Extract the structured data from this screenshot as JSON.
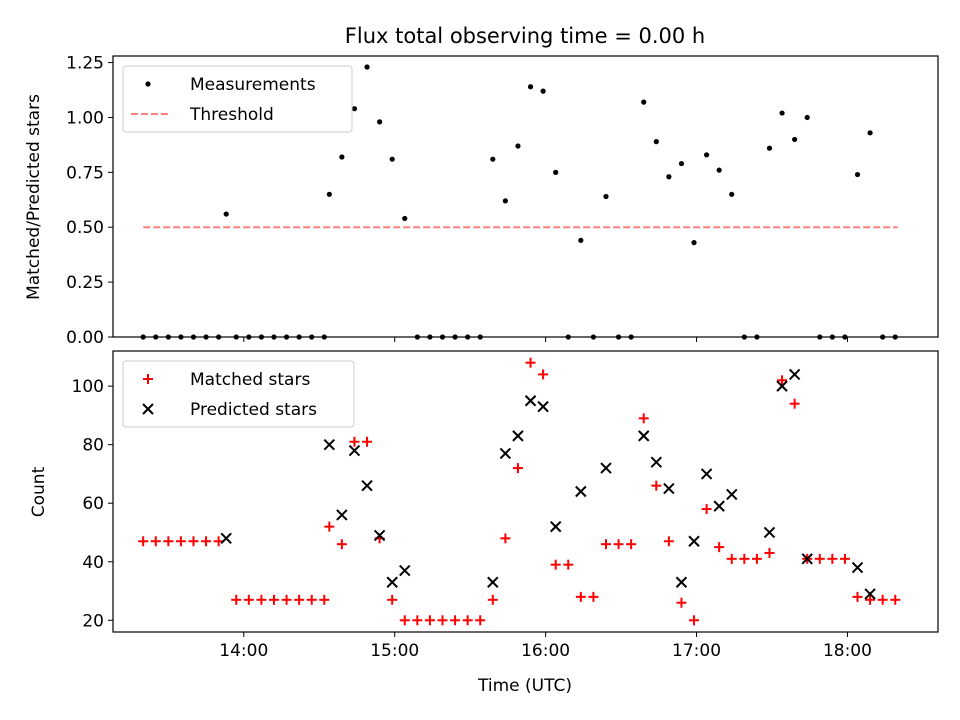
{
  "chart_data": [
    {
      "type": "scatter",
      "title": "Flux total observing time = 0.00 h",
      "xlabel": "",
      "ylabel": "Matched/Predicted stars",
      "ylim": [
        0,
        1.28
      ],
      "yticks": [
        0.0,
        0.25,
        0.5,
        0.75,
        1.0,
        1.25
      ],
      "ytick_labels": [
        "0.00",
        "0.25",
        "0.50",
        "0.75",
        "1.00",
        "1.25"
      ],
      "xlim": [
        "13:08",
        "18:36"
      ],
      "xticks": [
        "14:00",
        "15:00",
        "16:00",
        "17:00",
        "18:00"
      ],
      "legend": {
        "placement": "top-left",
        "entries": [
          "Measurements",
          "Threshold"
        ]
      },
      "series": [
        {
          "name": "Measurements",
          "marker": "dot",
          "color": "#000000",
          "points": [
            [
              "13:20",
              0
            ],
            [
              "13:25",
              0
            ],
            [
              "13:30",
              0
            ],
            [
              "13:35",
              0
            ],
            [
              "13:40",
              0
            ],
            [
              "13:45",
              0
            ],
            [
              "13:50",
              0
            ],
            [
              "13:53",
              0.56
            ],
            [
              "13:57",
              0
            ],
            [
              "14:02",
              0
            ],
            [
              "14:07",
              0
            ],
            [
              "14:12",
              0
            ],
            [
              "14:17",
              0
            ],
            [
              "14:22",
              0
            ],
            [
              "14:27",
              0
            ],
            [
              "14:32",
              0
            ],
            [
              "14:34",
              0.65
            ],
            [
              "14:39",
              0.82
            ],
            [
              "14:44",
              1.04
            ],
            [
              "14:49",
              1.23
            ],
            [
              "14:54",
              0.98
            ],
            [
              "14:59",
              0.81
            ],
            [
              "15:04",
              0.54
            ],
            [
              "15:09",
              0
            ],
            [
              "15:14",
              0
            ],
            [
              "15:19",
              0
            ],
            [
              "15:24",
              0
            ],
            [
              "15:29",
              0
            ],
            [
              "15:34",
              0
            ],
            [
              "15:39",
              0.81
            ],
            [
              "15:44",
              0.62
            ],
            [
              "15:49",
              0.87
            ],
            [
              "15:54",
              1.14
            ],
            [
              "15:59",
              1.12
            ],
            [
              "16:04",
              0.75
            ],
            [
              "16:09",
              0
            ],
            [
              "16:14",
              0.44
            ],
            [
              "16:19",
              0
            ],
            [
              "16:24",
              0.64
            ],
            [
              "16:29",
              0
            ],
            [
              "16:34",
              0
            ],
            [
              "16:39",
              1.07
            ],
            [
              "16:44",
              0.89
            ],
            [
              "16:49",
              0.73
            ],
            [
              "16:54",
              0.79
            ],
            [
              "16:59",
              0.43
            ],
            [
              "17:04",
              0.83
            ],
            [
              "17:09",
              0.76
            ],
            [
              "17:14",
              0.65
            ],
            [
              "17:19",
              0
            ],
            [
              "17:24",
              0
            ],
            [
              "17:29",
              0.86
            ],
            [
              "17:34",
              1.02
            ],
            [
              "17:39",
              0.9
            ],
            [
              "17:44",
              1.0
            ],
            [
              "17:49",
              0
            ],
            [
              "17:54",
              0
            ],
            [
              "17:59",
              0
            ],
            [
              "18:04",
              0.74
            ],
            [
              "18:09",
              0.93
            ],
            [
              "18:14",
              0
            ],
            [
              "18:19",
              0
            ]
          ]
        },
        {
          "name": "Threshold",
          "style": "dashed-line",
          "color": "#ff7f7f",
          "points": [
            [
              "13:20",
              0.5
            ],
            [
              "18:20",
              0.5
            ]
          ]
        }
      ]
    },
    {
      "type": "scatter",
      "title": "",
      "xlabel": "Time (UTC)",
      "ylabel": "Count",
      "ylim": [
        16,
        112
      ],
      "yticks": [
        20,
        40,
        60,
        80,
        100
      ],
      "ytick_labels": [
        "20",
        "40",
        "60",
        "80",
        "100"
      ],
      "xlim": [
        "13:08",
        "18:36"
      ],
      "xticks": [
        "14:00",
        "15:00",
        "16:00",
        "17:00",
        "18:00"
      ],
      "legend": {
        "placement": "top-left",
        "entries": [
          "Matched stars",
          "Predicted stars"
        ]
      },
      "series": [
        {
          "name": "Matched stars",
          "marker": "plus",
          "color": "#ff0000",
          "points": [
            [
              "13:20",
              47
            ],
            [
              "13:25",
              47
            ],
            [
              "13:30",
              47
            ],
            [
              "13:35",
              47
            ],
            [
              "13:40",
              47
            ],
            [
              "13:45",
              47
            ],
            [
              "13:50",
              47
            ],
            [
              "13:57",
              27
            ],
            [
              "14:02",
              27
            ],
            [
              "14:07",
              27
            ],
            [
              "14:12",
              27
            ],
            [
              "14:17",
              27
            ],
            [
              "14:22",
              27
            ],
            [
              "14:27",
              27
            ],
            [
              "14:32",
              27
            ],
            [
              "14:34",
              52
            ],
            [
              "14:39",
              46
            ],
            [
              "14:44",
              81
            ],
            [
              "14:49",
              81
            ],
            [
              "14:54",
              48
            ],
            [
              "14:59",
              27
            ],
            [
              "15:04",
              20
            ],
            [
              "15:09",
              20
            ],
            [
              "15:14",
              20
            ],
            [
              "15:19",
              20
            ],
            [
              "15:24",
              20
            ],
            [
              "15:29",
              20
            ],
            [
              "15:34",
              20
            ],
            [
              "15:39",
              27
            ],
            [
              "15:44",
              48
            ],
            [
              "15:49",
              72
            ],
            [
              "15:54",
              108
            ],
            [
              "15:59",
              104
            ],
            [
              "16:04",
              39
            ],
            [
              "16:09",
              39
            ],
            [
              "16:14",
              28
            ],
            [
              "16:19",
              28
            ],
            [
              "16:24",
              46
            ],
            [
              "16:29",
              46
            ],
            [
              "16:34",
              46
            ],
            [
              "16:39",
              89
            ],
            [
              "16:44",
              66
            ],
            [
              "16:49",
              47
            ],
            [
              "16:54",
              26
            ],
            [
              "16:59",
              20
            ],
            [
              "17:04",
              58
            ],
            [
              "17:09",
              45
            ],
            [
              "17:14",
              41
            ],
            [
              "17:19",
              41
            ],
            [
              "17:24",
              41
            ],
            [
              "17:29",
              43
            ],
            [
              "17:34",
              102
            ],
            [
              "17:39",
              94
            ],
            [
              "17:44",
              41
            ],
            [
              "17:49",
              41
            ],
            [
              "17:54",
              41
            ],
            [
              "17:59",
              41
            ],
            [
              "18:04",
              28
            ],
            [
              "18:09",
              27
            ],
            [
              "18:14",
              27
            ],
            [
              "18:19",
              27
            ]
          ]
        },
        {
          "name": "Predicted stars",
          "marker": "x",
          "color": "#000000",
          "points": [
            [
              "13:53",
              48
            ],
            [
              "14:34",
              80
            ],
            [
              "14:39",
              56
            ],
            [
              "14:44",
              78
            ],
            [
              "14:49",
              66
            ],
            [
              "14:54",
              49
            ],
            [
              "14:59",
              33
            ],
            [
              "15:04",
              37
            ],
            [
              "15:39",
              33
            ],
            [
              "15:44",
              77
            ],
            [
              "15:49",
              83
            ],
            [
              "15:54",
              95
            ],
            [
              "15:59",
              93
            ],
            [
              "16:04",
              52
            ],
            [
              "16:14",
              64
            ],
            [
              "16:24",
              72
            ],
            [
              "16:39",
              83
            ],
            [
              "16:44",
              74
            ],
            [
              "16:49",
              65
            ],
            [
              "16:54",
              33
            ],
            [
              "16:59",
              47
            ],
            [
              "17:04",
              70
            ],
            [
              "17:09",
              59
            ],
            [
              "17:14",
              63
            ],
            [
              "17:29",
              50
            ],
            [
              "17:34",
              100
            ],
            [
              "17:39",
              104
            ],
            [
              "17:44",
              41
            ],
            [
              "18:04",
              38
            ],
            [
              "18:09",
              29
            ]
          ]
        }
      ]
    }
  ]
}
